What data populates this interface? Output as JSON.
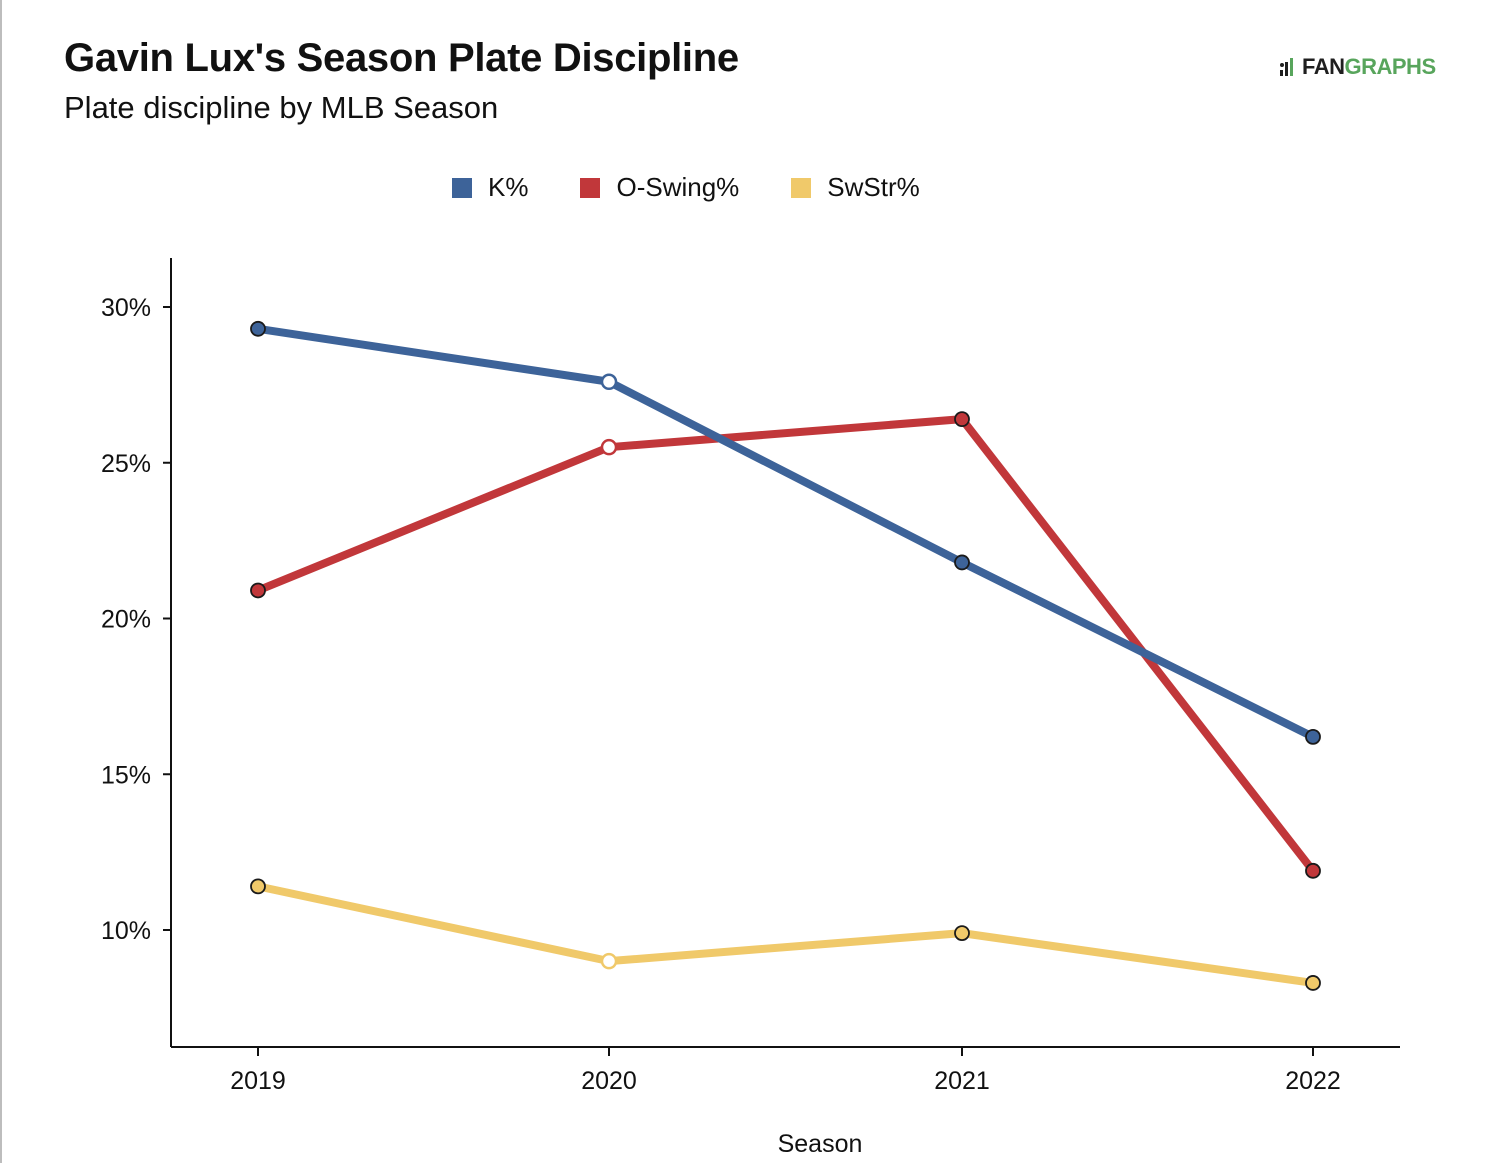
{
  "header": {
    "title": "Gavin Lux's Season Plate Discipline",
    "subtitle": "Plate discipline by MLB Season"
  },
  "logo": {
    "fan": "FAN",
    "graphs": "GRAPHS",
    "colors": {
      "fan": "#1f1f1f",
      "graphs": "#58a55c"
    }
  },
  "chart_data": {
    "type": "line",
    "title": "Gavin Lux's Season Plate Discipline",
    "subtitle": "Plate discipline by MLB Season",
    "xlabel": "Season",
    "ylabel": "",
    "categories": [
      "2019",
      "2020",
      "2021",
      "2022"
    ],
    "ylim": [
      6.2,
      31.5
    ],
    "yticks": [
      10,
      15,
      20,
      25,
      30
    ],
    "ytick_labels": [
      "10%",
      "15%",
      "20%",
      "25%",
      "30%"
    ],
    "grid": false,
    "legend_position": "top-center",
    "series": [
      {
        "name": "K%",
        "color": "#3d6399",
        "values": [
          29.3,
          27.6,
          21.8,
          16.2
        ],
        "hollow": [
          false,
          true,
          false,
          false
        ]
      },
      {
        "name": "O-Swing%",
        "color": "#c1373a",
        "values": [
          20.9,
          25.5,
          26.4,
          11.9
        ],
        "hollow": [
          false,
          true,
          false,
          false
        ]
      },
      {
        "name": "SwStr%",
        "color": "#f0c96a",
        "values": [
          11.4,
          9.0,
          9.9,
          8.3
        ],
        "hollow": [
          false,
          true,
          false,
          false
        ]
      }
    ]
  }
}
